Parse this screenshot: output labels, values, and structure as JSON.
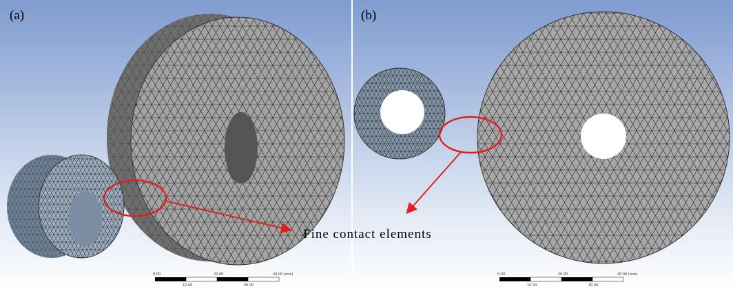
{
  "panels": [
    {
      "label": "(a)",
      "scale_bar": {
        "top_labels": [
          "0.00",
          "20.00",
          "40.00 (mm)"
        ],
        "bottom_labels": [
          "10.00",
          "30.00"
        ]
      }
    },
    {
      "label": "(b)",
      "scale_bar": {
        "top_labels": [
          "0.00",
          "20.00",
          "40.00 (mm)"
        ],
        "bottom_labels": [
          "10.00",
          "30.00"
        ]
      }
    }
  ],
  "annotation": "Fine contact elements"
}
